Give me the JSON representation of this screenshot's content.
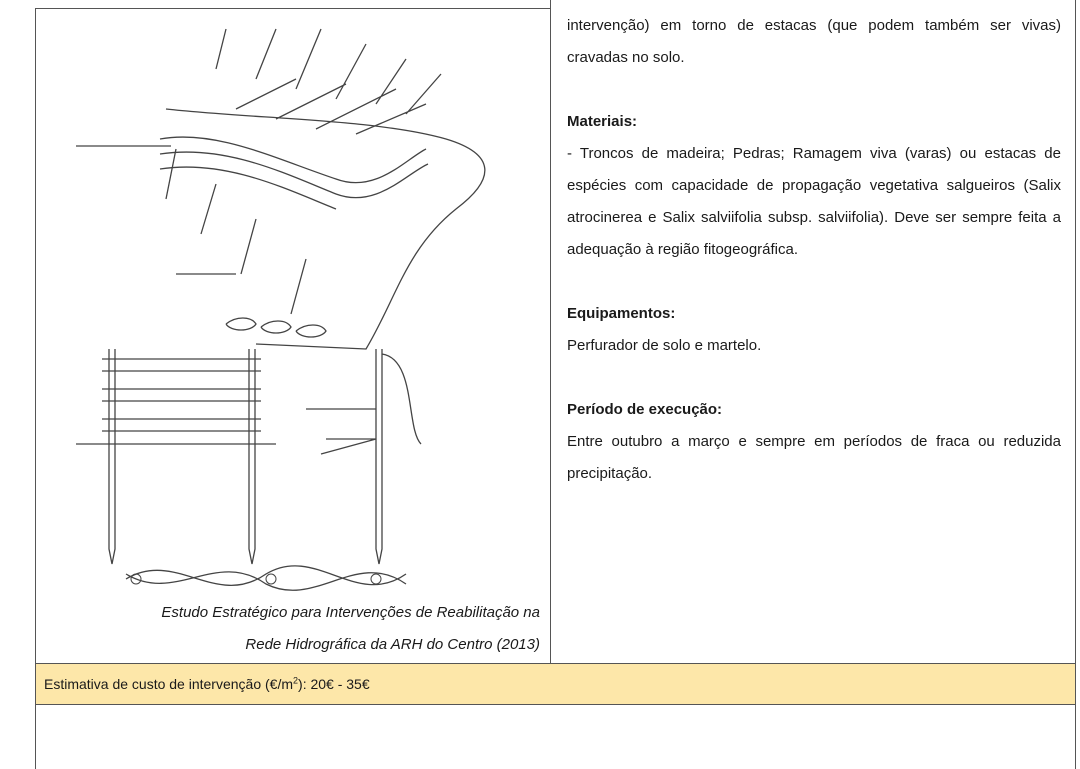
{
  "body": {
    "intro": "intervenção) em torno de estacas (que podem também ser vivas) cravadas no solo.",
    "sections": [
      {
        "heading": "Materiais:",
        "text": "- Troncos de madeira; Pedras; Ramagem viva (varas) ou estacas de espécies com capacidade de propagação vegetativa salgueiros (Salix atrocinerea e Salix salviifolia subsp. salviifolia). Deve ser sempre feita a adequação à região fitogeográfica."
      },
      {
        "heading": "Equipamentos:",
        "text": "Perfurador de solo e martelo."
      },
      {
        "heading": "Período de execução:",
        "text": "Entre outubro a março e sempre em períodos de fraca ou reduzida precipitação."
      }
    ]
  },
  "caption": {
    "lines": [
      "Estudo Estratégico para Intervenções de Reabilitação na",
      "Rede Hidrográfica da ARH do Centro (2013)"
    ]
  },
  "footer": {
    "parts": [
      "Estimativa de custo de intervenção (€/m",
      "2",
      "): 20€ - 35€"
    ]
  }
}
